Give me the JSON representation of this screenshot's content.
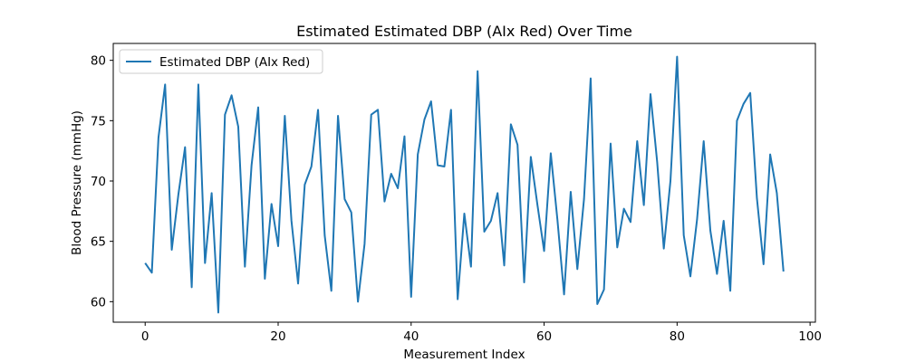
{
  "chart_data": {
    "type": "line",
    "title": "Estimated Estimated DBP (AIx Red) Over Time",
    "xlabel": "Measurement Index",
    "ylabel": "Blood Pressure (mmHg)",
    "xlim": [
      -4.8,
      100.8
    ],
    "ylim": [
      58.3,
      81.4
    ],
    "xticks": [
      0,
      20,
      40,
      60,
      80,
      100
    ],
    "yticks": [
      60,
      65,
      70,
      75,
      80
    ],
    "grid": false,
    "legend_position": "upper left",
    "series": [
      {
        "name": "Estimated DBP (AIx Red)",
        "color": "#1f77b4",
        "x": [
          0,
          1,
          2,
          3,
          4,
          5,
          6,
          7,
          8,
          9,
          10,
          11,
          12,
          13,
          14,
          15,
          16,
          17,
          18,
          19,
          20,
          21,
          22,
          23,
          24,
          25,
          26,
          27,
          28,
          29,
          30,
          31,
          32,
          33,
          34,
          35,
          36,
          37,
          38,
          39,
          40,
          41,
          42,
          43,
          44,
          45,
          46,
          47,
          48,
          49,
          50,
          51,
          52,
          53,
          54,
          55,
          56,
          57,
          58,
          59,
          60,
          61,
          62,
          63,
          64,
          65,
          66,
          67,
          68,
          69,
          70,
          71,
          72,
          73,
          74,
          75,
          76,
          77,
          78,
          79,
          80,
          81,
          82,
          83,
          84,
          85,
          86,
          87,
          88,
          89,
          90,
          91,
          92,
          93,
          94,
          95,
          96
        ],
        "values": [
          63.2,
          62.4,
          73.6,
          78.0,
          64.3,
          68.9,
          72.8,
          61.2,
          78.0,
          63.2,
          69.0,
          59.1,
          75.5,
          77.1,
          74.5,
          62.9,
          71.3,
          76.1,
          61.9,
          68.1,
          64.6,
          75.4,
          66.7,
          61.5,
          69.7,
          71.2,
          75.9,
          65.5,
          60.9,
          75.4,
          68.5,
          67.4,
          60.0,
          64.8,
          75.5,
          75.9,
          68.3,
          70.6,
          69.4,
          73.7,
          60.4,
          72.2,
          75.1,
          76.6,
          71.3,
          71.2,
          75.9,
          60.2,
          67.3,
          62.9,
          79.1,
          65.8,
          66.7,
          69.0,
          63.0,
          74.7,
          73.0,
          61.6,
          72.0,
          68.0,
          64.2,
          72.3,
          66.8,
          60.6,
          69.1,
          62.7,
          68.5,
          78.5,
          59.8,
          61.0,
          73.1,
          64.5,
          67.7,
          66.6,
          73.3,
          68.0,
          77.2,
          71.6,
          64.4,
          70.0,
          80.3,
          65.5,
          62.1,
          66.8,
          73.3,
          65.9,
          62.3,
          66.7,
          60.9,
          75.0,
          76.4,
          77.3,
          68.6,
          63.1,
          72.2,
          69.0,
          62.5
        ]
      }
    ]
  }
}
